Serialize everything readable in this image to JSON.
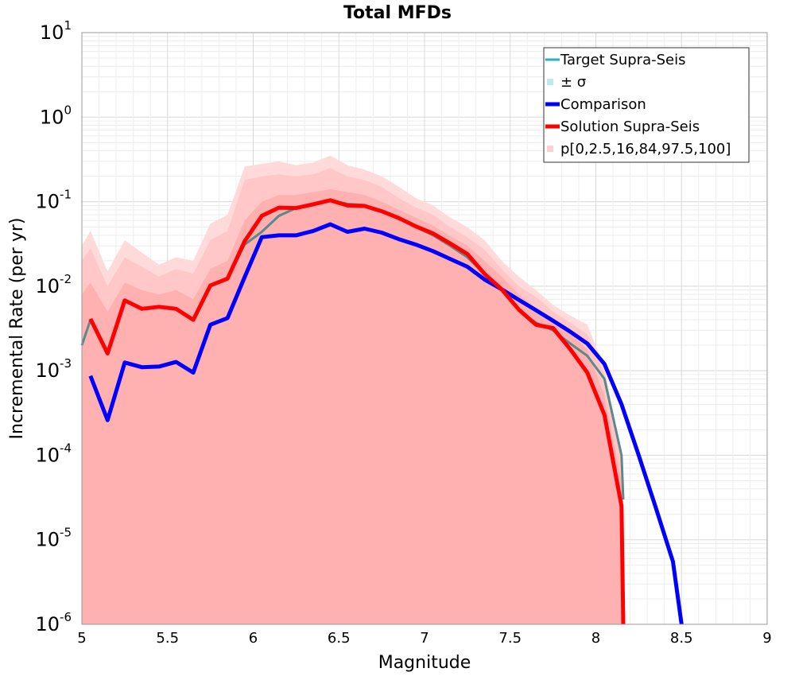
{
  "chart_data": {
    "type": "line",
    "title": "Total MFDs",
    "xlabel": "Magnitude",
    "ylabel": "Incremental Rate (per yr)",
    "xlim": [
      5,
      9
    ],
    "ylim_log10": [
      -6,
      1
    ],
    "y_scale": "log",
    "grid": true,
    "legend_position": "top-right",
    "x_ticks": [
      "5",
      "5.5",
      "6",
      "6.5",
      "7",
      "7.5",
      "8",
      "8.5",
      "9"
    ],
    "y_ticks": [
      {
        "base": "10",
        "exp": "1"
      },
      {
        "base": "10",
        "exp": "0"
      },
      {
        "base": "10",
        "exp": "-1"
      },
      {
        "base": "10",
        "exp": "-2"
      },
      {
        "base": "10",
        "exp": "-3"
      },
      {
        "base": "10",
        "exp": "-4"
      },
      {
        "base": "10",
        "exp": "-5"
      },
      {
        "base": "10",
        "exp": "-6"
      }
    ],
    "legend": [
      {
        "label": "Target Supra-Seis",
        "color": "#22b3c4",
        "kind": "line"
      },
      {
        "label": "± σ",
        "color": "#bde8ee",
        "kind": "box"
      },
      {
        "label": "Comparison",
        "color": "#0000ff",
        "kind": "line"
      },
      {
        "label": "Solution Supra-Seis",
        "color": "#ff0000",
        "kind": "line"
      },
      {
        "label": "p[0,2.5,16,84,97.5,100]",
        "color": "#ffd0d0",
        "kind": "box"
      }
    ],
    "series": [
      {
        "name": "Target Supra-Seis",
        "color": "#5a8a8a",
        "x": [
          5.0,
          5.05,
          5.15,
          5.25,
          5.35,
          5.45,
          5.55,
          5.65,
          5.75,
          5.85,
          5.95,
          6.05,
          6.15,
          6.25,
          6.35,
          6.45,
          6.55,
          6.65,
          6.75,
          6.85,
          6.95,
          7.05,
          7.15,
          7.25,
          7.35,
          7.45,
          7.55,
          7.65,
          7.75,
          7.85,
          7.95,
          8.05,
          8.15,
          8.16
        ],
        "y": [
          0.002,
          0.004,
          0.0016,
          0.0068,
          0.0054,
          0.0057,
          0.0054,
          0.004,
          0.0102,
          0.0123,
          0.031,
          0.044,
          0.068,
          0.084,
          0.092,
          0.104,
          0.094,
          0.091,
          0.078,
          0.064,
          0.05,
          0.04,
          0.03,
          0.022,
          0.014,
          0.009,
          0.0052,
          0.0037,
          0.003,
          0.0021,
          0.0015,
          0.0008,
          0.0001,
          3e-05
        ]
      },
      {
        "name": "Comparison",
        "color": "#0000ff",
        "x": [
          5.05,
          5.15,
          5.25,
          5.35,
          5.45,
          5.55,
          5.65,
          5.75,
          5.85,
          5.95,
          6.05,
          6.15,
          6.25,
          6.35,
          6.45,
          6.55,
          6.65,
          6.75,
          6.85,
          6.95,
          7.05,
          7.15,
          7.25,
          7.35,
          7.45,
          7.55,
          7.65,
          7.75,
          7.85,
          7.95,
          8.05,
          8.15,
          8.25,
          8.35,
          8.45,
          8.5
        ],
        "y": [
          0.00087,
          0.00026,
          0.00125,
          0.0011,
          0.00112,
          0.00127,
          0.00095,
          0.0035,
          0.0042,
          0.0128,
          0.038,
          0.04,
          0.04,
          0.045,
          0.054,
          0.044,
          0.048,
          0.043,
          0.036,
          0.031,
          0.026,
          0.021,
          0.017,
          0.012,
          0.0092,
          0.0069,
          0.0052,
          0.0039,
          0.0029,
          0.0021,
          0.0012,
          0.0004,
          0.0001,
          2.4e-05,
          5.5e-06,
          1e-06
        ]
      },
      {
        "name": "Solution Supra-Seis",
        "color": "#ff0000",
        "x": [
          5.05,
          5.15,
          5.25,
          5.35,
          5.45,
          5.55,
          5.65,
          5.75,
          5.85,
          5.95,
          6.05,
          6.15,
          6.25,
          6.35,
          6.45,
          6.55,
          6.65,
          6.75,
          6.85,
          6.95,
          7.05,
          7.15,
          7.25,
          7.35,
          7.45,
          7.55,
          7.65,
          7.75,
          7.85,
          7.95,
          8.05,
          8.15,
          8.16
        ],
        "y": [
          0.0041,
          0.0016,
          0.0068,
          0.0054,
          0.0057,
          0.0054,
          0.004,
          0.0102,
          0.0123,
          0.034,
          0.068,
          0.085,
          0.084,
          0.093,
          0.104,
          0.09,
          0.089,
          0.077,
          0.064,
          0.051,
          0.042,
          0.032,
          0.024,
          0.014,
          0.0092,
          0.0053,
          0.0035,
          0.0032,
          0.0018,
          0.00095,
          0.0003,
          2.5e-05,
          1e-06
        ]
      }
    ],
    "bands": [
      {
        "name": "p0-100",
        "color": "#ffdada",
        "x": [
          5.0,
          5.05,
          5.15,
          5.25,
          5.35,
          5.45,
          5.55,
          5.65,
          5.75,
          5.85,
          5.95,
          6.05,
          6.15,
          6.25,
          6.35,
          6.45,
          6.55,
          6.65,
          6.75,
          6.85,
          6.95,
          7.05,
          7.15,
          7.25,
          7.35,
          7.45,
          7.55,
          7.65,
          7.75,
          7.85,
          7.95,
          8.05,
          8.15,
          8.16
        ],
        "upper": [
          0.03,
          0.045,
          0.015,
          0.035,
          0.025,
          0.018,
          0.022,
          0.02,
          0.055,
          0.07,
          0.26,
          0.28,
          0.3,
          0.27,
          0.29,
          0.35,
          0.27,
          0.24,
          0.2,
          0.15,
          0.11,
          0.09,
          0.065,
          0.05,
          0.035,
          0.02,
          0.013,
          0.009,
          0.006,
          0.0045,
          0.0035,
          0.0011,
          0.0001,
          3e-05
        ],
        "lower": [
          1e-06,
          1e-06,
          1e-06,
          1e-06,
          1e-06,
          1e-06,
          1e-06,
          1e-06,
          1e-06,
          1e-06,
          1e-06,
          1e-06,
          1e-06,
          1e-06,
          1e-06,
          1e-06,
          1e-06,
          1e-06,
          1e-06,
          1e-06,
          1e-06,
          1e-06,
          1e-06,
          1e-06,
          1e-06,
          1e-06,
          1e-06,
          1e-06,
          1e-06,
          1e-06,
          1e-06,
          1e-06,
          1e-06,
          1e-06
        ]
      },
      {
        "name": "p2.5-97.5",
        "color": "#ffc7c7",
        "x": [
          5.0,
          5.05,
          5.15,
          5.25,
          5.35,
          5.45,
          5.55,
          5.65,
          5.75,
          5.85,
          5.95,
          6.05,
          6.15,
          6.25,
          6.35,
          6.45,
          6.55,
          6.65,
          6.75,
          6.85,
          6.95,
          7.05,
          7.15,
          7.25,
          7.35,
          7.45,
          7.55,
          7.65,
          7.75,
          7.85,
          7.95,
          8.05,
          8.15,
          8.16
        ],
        "upper": [
          0.02,
          0.028,
          0.01,
          0.022,
          0.017,
          0.013,
          0.016,
          0.014,
          0.035,
          0.045,
          0.18,
          0.2,
          0.21,
          0.2,
          0.21,
          0.25,
          0.2,
          0.18,
          0.15,
          0.11,
          0.085,
          0.07,
          0.05,
          0.038,
          0.027,
          0.016,
          0.01,
          0.0075,
          0.005,
          0.0037,
          0.0027,
          0.0009,
          0.0001,
          3e-05
        ],
        "lower": [
          1e-06,
          1e-06,
          1e-06,
          1e-06,
          1e-06,
          1e-06,
          1e-06,
          1e-06,
          1e-06,
          1e-06,
          1e-06,
          1e-06,
          1e-06,
          1e-06,
          1e-06,
          1e-06,
          1e-06,
          1e-06,
          1e-06,
          1e-06,
          1e-06,
          1e-06,
          1e-06,
          1e-06,
          1e-06,
          1e-06,
          1e-06,
          1e-06,
          1e-06,
          1e-06,
          1e-06,
          1e-06,
          1e-06,
          1e-06
        ]
      },
      {
        "name": "p16-84",
        "color": "#ffb0b0",
        "x": [
          5.0,
          5.05,
          5.15,
          5.25,
          5.35,
          5.45,
          5.55,
          5.65,
          5.75,
          5.85,
          5.95,
          6.05,
          6.15,
          6.25,
          6.35,
          6.45,
          6.55,
          6.65,
          6.75,
          6.85,
          6.95,
          7.05,
          7.15,
          7.25,
          7.35,
          7.45,
          7.55,
          7.65,
          7.75,
          7.85,
          7.95,
          8.05,
          8.15,
          8.16
        ],
        "upper": [
          0.008,
          0.011,
          0.005,
          0.011,
          0.009,
          0.008,
          0.009,
          0.007,
          0.016,
          0.02,
          0.06,
          0.1,
          0.12,
          0.12,
          0.13,
          0.14,
          0.13,
          0.12,
          0.1,
          0.08,
          0.065,
          0.052,
          0.039,
          0.03,
          0.02,
          0.013,
          0.008,
          0.0055,
          0.0042,
          0.0028,
          0.0018,
          0.0005,
          5e-05,
          2e-05
        ],
        "lower": [
          1e-06,
          1e-06,
          1e-06,
          1e-06,
          1e-06,
          1e-06,
          1e-06,
          1e-06,
          1e-06,
          1e-06,
          1e-06,
          1e-06,
          1e-06,
          1e-06,
          1e-06,
          1e-06,
          1e-06,
          1e-06,
          1e-06,
          1e-06,
          1e-06,
          1e-06,
          1e-06,
          1e-06,
          1e-06,
          1e-06,
          1e-06,
          1e-06,
          1e-06,
          1e-06,
          1e-06,
          1e-06,
          1e-06,
          1e-06
        ]
      }
    ]
  }
}
